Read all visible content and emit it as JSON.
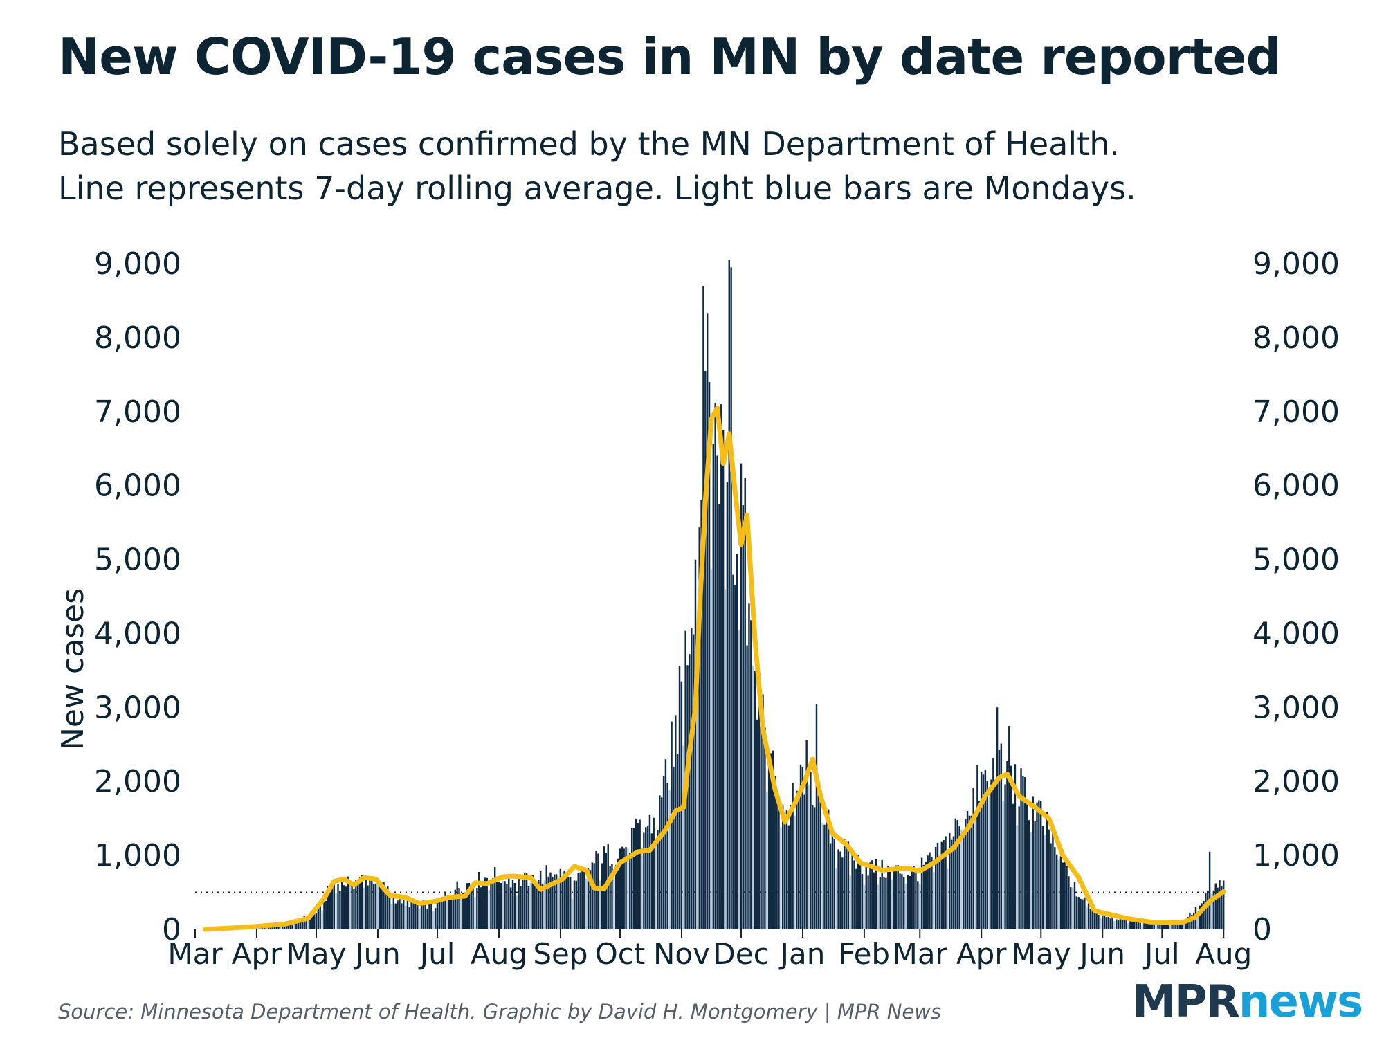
{
  "title": "New COVID-19 cases in MN by date reported",
  "subtitle_line1": "Based solely on cases confirmed by the MN Department of Health.",
  "subtitle_line2": "Line represents 7-day rolling average. Light blue bars are Mondays.",
  "source": "Source: Minnesota Department of Health. Graphic by David H. Montgomery | MPR News",
  "logo": {
    "part1": "MPR",
    "part2": "news"
  },
  "colors": {
    "bar": "#0e2a44",
    "monday_bar": "#b2c7da",
    "line": "#f4bd18",
    "text": "#0d2432",
    "logo_dark": "#1f3a4f",
    "logo_blue": "#1aa0d8"
  },
  "chart_data": {
    "type": "bar",
    "ylabel": "New cases",
    "ylim": [
      0,
      9000
    ],
    "yticks": [
      0,
      1000,
      2000,
      3000,
      4000,
      5000,
      6000,
      7000,
      8000,
      9000
    ],
    "ytick_labels": [
      "0",
      "1,000",
      "2,000",
      "3,000",
      "4,000",
      "5,000",
      "6,000",
      "7,000",
      "8,000",
      "9,000"
    ],
    "y_axis_on_both_sides": true,
    "x_start": "2020-03-01",
    "x_end": "2021-08-03",
    "xtick_dates": [
      "2020-03-01",
      "2020-04-01",
      "2020-05-01",
      "2020-06-01",
      "2020-07-01",
      "2020-08-01",
      "2020-09-01",
      "2020-10-01",
      "2020-11-01",
      "2020-12-01",
      "2021-01-01",
      "2021-02-01",
      "2021-03-01",
      "2021-04-01",
      "2021-05-01",
      "2021-06-01",
      "2021-07-01",
      "2021-08-01"
    ],
    "xtick_labels": [
      "Mar",
      "Apr",
      "May",
      "Jun",
      "Jul",
      "Aug",
      "Sep",
      "Oct",
      "Nov",
      "Dec",
      "Jan",
      "Feb",
      "Mar",
      "Apr",
      "May",
      "Jun",
      "Jul",
      "Aug"
    ],
    "reference_line": {
      "value": 500,
      "style": "dotted"
    },
    "series": [
      {
        "kind": "bars",
        "description": "daily new cases (Mondays light blue)",
        "keypoints": [
          [
            "2020-03-06",
            2
          ],
          [
            "2020-03-20",
            20
          ],
          [
            "2020-04-01",
            50
          ],
          [
            "2020-04-15",
            80
          ],
          [
            "2020-04-30",
            200
          ],
          [
            "2020-05-10",
            620
          ],
          [
            "2020-05-20",
            650
          ],
          [
            "2020-05-30",
            700
          ],
          [
            "2020-06-10",
            420
          ],
          [
            "2020-06-20",
            340
          ],
          [
            "2020-06-30",
            330
          ],
          [
            "2020-07-10",
            560
          ],
          [
            "2020-07-20",
            650
          ],
          [
            "2020-07-30",
            730
          ],
          [
            "2020-08-10",
            650
          ],
          [
            "2020-08-20",
            680
          ],
          [
            "2020-08-30",
            820
          ],
          [
            "2020-09-08",
            600
          ],
          [
            "2020-09-20",
            950
          ],
          [
            "2020-09-30",
            1050
          ],
          [
            "2020-10-10",
            1300
          ],
          [
            "2020-10-20",
            1500
          ],
          [
            "2020-10-30",
            2800
          ],
          [
            "2020-11-05",
            4200
          ],
          [
            "2020-11-10",
            5500
          ],
          [
            "2020-11-14",
            7100
          ],
          [
            "2020-11-17",
            6700
          ],
          [
            "2020-11-22",
            6500
          ],
          [
            "2020-11-26",
            5500
          ],
          [
            "2020-12-01",
            5500
          ],
          [
            "2020-12-06",
            4000
          ],
          [
            "2020-12-11",
            2900
          ],
          [
            "2020-12-18",
            2000
          ],
          [
            "2020-12-24",
            1500
          ],
          [
            "2021-01-03",
            2200
          ],
          [
            "2021-01-10",
            1600
          ],
          [
            "2021-01-20",
            1100
          ],
          [
            "2021-01-30",
            880
          ],
          [
            "2021-02-10",
            800
          ],
          [
            "2021-02-28",
            780
          ],
          [
            "2021-03-10",
            1000
          ],
          [
            "2021-03-20",
            1400
          ],
          [
            "2021-03-30",
            1900
          ],
          [
            "2021-04-09",
            2200
          ],
          [
            "2021-04-20",
            1900
          ],
          [
            "2021-04-30",
            1600
          ],
          [
            "2021-05-10",
            1000
          ],
          [
            "2021-05-20",
            450
          ],
          [
            "2021-05-31",
            200
          ],
          [
            "2021-06-15",
            120
          ],
          [
            "2021-06-30",
            70
          ],
          [
            "2021-07-10",
            100
          ],
          [
            "2021-07-20",
            300
          ],
          [
            "2021-07-26",
            550
          ],
          [
            "2021-08-01",
            600
          ]
        ],
        "spikes": [
          [
            "2020-11-12",
            8700
          ],
          [
            "2020-11-13",
            7550
          ],
          [
            "2020-11-15",
            7400
          ],
          [
            "2020-11-25",
            9050
          ],
          [
            "2020-11-26",
            8950
          ],
          [
            "2020-11-11",
            5800
          ],
          [
            "2020-12-03",
            6100
          ],
          [
            "2020-12-01",
            6300
          ],
          [
            "2021-01-08",
            3050
          ],
          [
            "2021-04-09",
            3000
          ],
          [
            "2021-04-15",
            2750
          ],
          [
            "2021-07-25",
            1050
          ],
          [
            "2020-10-24",
            2300
          ],
          [
            "2020-10-28",
            2200
          ]
        ]
      },
      {
        "kind": "line",
        "description": "7-day rolling average",
        "keypoints": [
          [
            "2020-03-06",
            0
          ],
          [
            "2020-03-20",
            20
          ],
          [
            "2020-04-01",
            40
          ],
          [
            "2020-04-15",
            70
          ],
          [
            "2020-04-27",
            150
          ],
          [
            "2020-05-05",
            420
          ],
          [
            "2020-05-10",
            650
          ],
          [
            "2020-05-15",
            680
          ],
          [
            "2020-05-20",
            600
          ],
          [
            "2020-05-25",
            700
          ],
          [
            "2020-05-31",
            680
          ],
          [
            "2020-06-07",
            460
          ],
          [
            "2020-06-15",
            430
          ],
          [
            "2020-06-22",
            350
          ],
          [
            "2020-06-30",
            380
          ],
          [
            "2020-07-05",
            420
          ],
          [
            "2020-07-10",
            440
          ],
          [
            "2020-07-15",
            450
          ],
          [
            "2020-07-20",
            630
          ],
          [
            "2020-07-26",
            620
          ],
          [
            "2020-08-03",
            710
          ],
          [
            "2020-08-08",
            720
          ],
          [
            "2020-08-17",
            700
          ],
          [
            "2020-08-22",
            540
          ],
          [
            "2020-09-02",
            680
          ],
          [
            "2020-09-08",
            850
          ],
          [
            "2020-09-14",
            800
          ],
          [
            "2020-09-18",
            560
          ],
          [
            "2020-09-23",
            550
          ],
          [
            "2020-10-01",
            900
          ],
          [
            "2020-10-10",
            1050
          ],
          [
            "2020-10-16",
            1070
          ],
          [
            "2020-10-24",
            1350
          ],
          [
            "2020-10-29",
            1600
          ],
          [
            "2020-11-02",
            1650
          ],
          [
            "2020-11-05",
            2400
          ],
          [
            "2020-11-08",
            3000
          ],
          [
            "2020-11-10",
            4300
          ],
          [
            "2020-11-13",
            5800
          ],
          [
            "2020-11-16",
            6900
          ],
          [
            "2020-11-19",
            7050
          ],
          [
            "2020-11-22",
            6300
          ],
          [
            "2020-11-25",
            6700
          ],
          [
            "2020-11-28",
            5900
          ],
          [
            "2020-12-01",
            5200
          ],
          [
            "2020-12-04",
            5600
          ],
          [
            "2020-12-08",
            3900
          ],
          [
            "2020-12-12",
            2700
          ],
          [
            "2020-12-18",
            1900
          ],
          [
            "2020-12-23",
            1450
          ],
          [
            "2020-12-28",
            1700
          ],
          [
            "2021-01-02",
            2000
          ],
          [
            "2021-01-06",
            2300
          ],
          [
            "2021-01-10",
            1800
          ],
          [
            "2021-01-16",
            1300
          ],
          [
            "2021-01-23",
            1150
          ],
          [
            "2021-01-30",
            900
          ],
          [
            "2021-02-10",
            800
          ],
          [
            "2021-02-22",
            830
          ],
          [
            "2021-03-01",
            790
          ],
          [
            "2021-03-08",
            900
          ],
          [
            "2021-03-18",
            1100
          ],
          [
            "2021-03-26",
            1400
          ],
          [
            "2021-04-03",
            1800
          ],
          [
            "2021-04-10",
            2050
          ],
          [
            "2021-04-14",
            2100
          ],
          [
            "2021-04-20",
            1800
          ],
          [
            "2021-04-28",
            1650
          ],
          [
            "2021-05-05",
            1500
          ],
          [
            "2021-05-12",
            1000
          ],
          [
            "2021-05-20",
            700
          ],
          [
            "2021-05-28",
            250
          ],
          [
            "2021-06-05",
            200
          ],
          [
            "2021-06-15",
            140
          ],
          [
            "2021-06-25",
            100
          ],
          [
            "2021-07-05",
            90
          ],
          [
            "2021-07-12",
            100
          ],
          [
            "2021-07-18",
            170
          ],
          [
            "2021-07-25",
            380
          ],
          [
            "2021-08-01",
            510
          ]
        ]
      }
    ]
  }
}
